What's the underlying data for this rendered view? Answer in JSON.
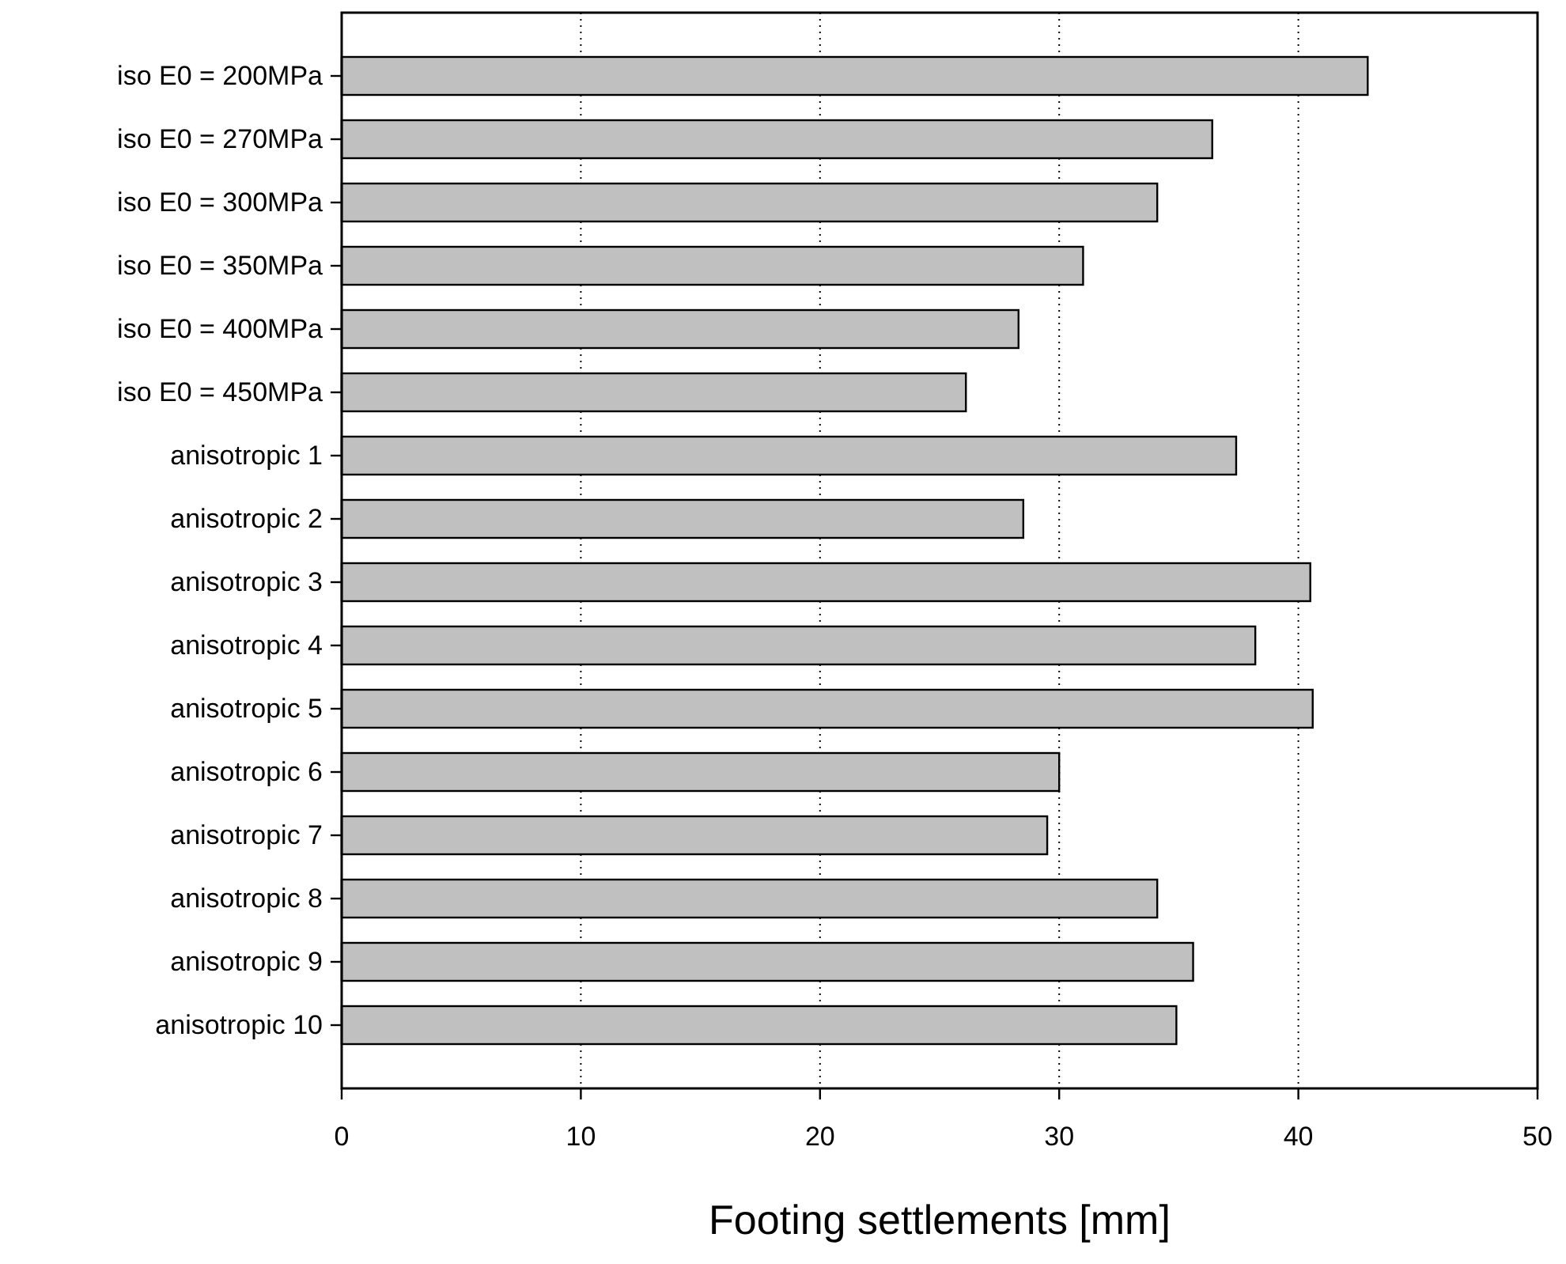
{
  "chart_data": {
    "type": "bar",
    "orientation": "horizontal",
    "xlabel": "Footing settlements [mm]",
    "categories": [
      "iso E0 = 200MPa",
      "iso E0 = 270MPa",
      "iso E0 = 300MPa",
      "iso E0 = 350MPa",
      "iso E0 = 400MPa",
      "iso E0 = 450MPa",
      "anisotropic 1",
      "anisotropic 2",
      "anisotropic 3",
      "anisotropic 4",
      "anisotropic 5",
      "anisotropic 6",
      "anisotropic 7",
      "anisotropic 8",
      "anisotropic 9",
      "anisotropic 10"
    ],
    "values": [
      42.9,
      36.4,
      34.1,
      31.0,
      28.3,
      26.1,
      37.4,
      28.5,
      40.5,
      38.2,
      40.6,
      30.0,
      29.5,
      34.1,
      35.6,
      34.9
    ],
    "color": "#c0c0c0",
    "xlim": [
      0,
      50
    ],
    "xticks": [
      0,
      10,
      20,
      30,
      40,
      50
    ],
    "grid": "x"
  }
}
